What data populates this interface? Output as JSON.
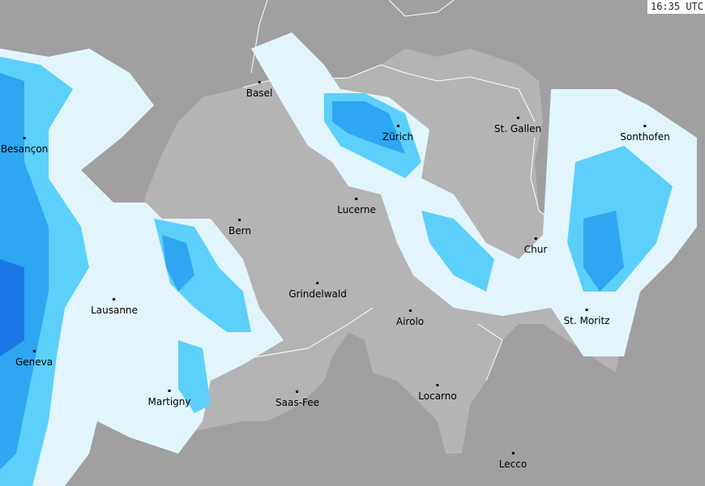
{
  "timestamp": "16:35 UTC",
  "colors": {
    "outside": "#a0a0a0",
    "switzerland": "#b4b4b4",
    "border": "#ffffff",
    "precip_very_light": "#e2f5fd",
    "precip_light": "#5cd0fa",
    "precip_moderate": "#2ea6f2",
    "precip_heavy": "#1a78e6"
  },
  "cities": [
    {
      "name": "Basel"
    },
    {
      "name": "Besançon"
    },
    {
      "name": "Zürich"
    },
    {
      "name": "St. Gallen"
    },
    {
      "name": "Sonthofen"
    },
    {
      "name": "Lucerne"
    },
    {
      "name": "Bern"
    },
    {
      "name": "Chur"
    },
    {
      "name": "Grindelwald"
    },
    {
      "name": "Lausanne"
    },
    {
      "name": "Airolo"
    },
    {
      "name": "St. Moritz"
    },
    {
      "name": "Geneva"
    },
    {
      "name": "Martigny"
    },
    {
      "name": "Saas-Fee"
    },
    {
      "name": "Locarno"
    },
    {
      "name": "Lecco"
    }
  ]
}
